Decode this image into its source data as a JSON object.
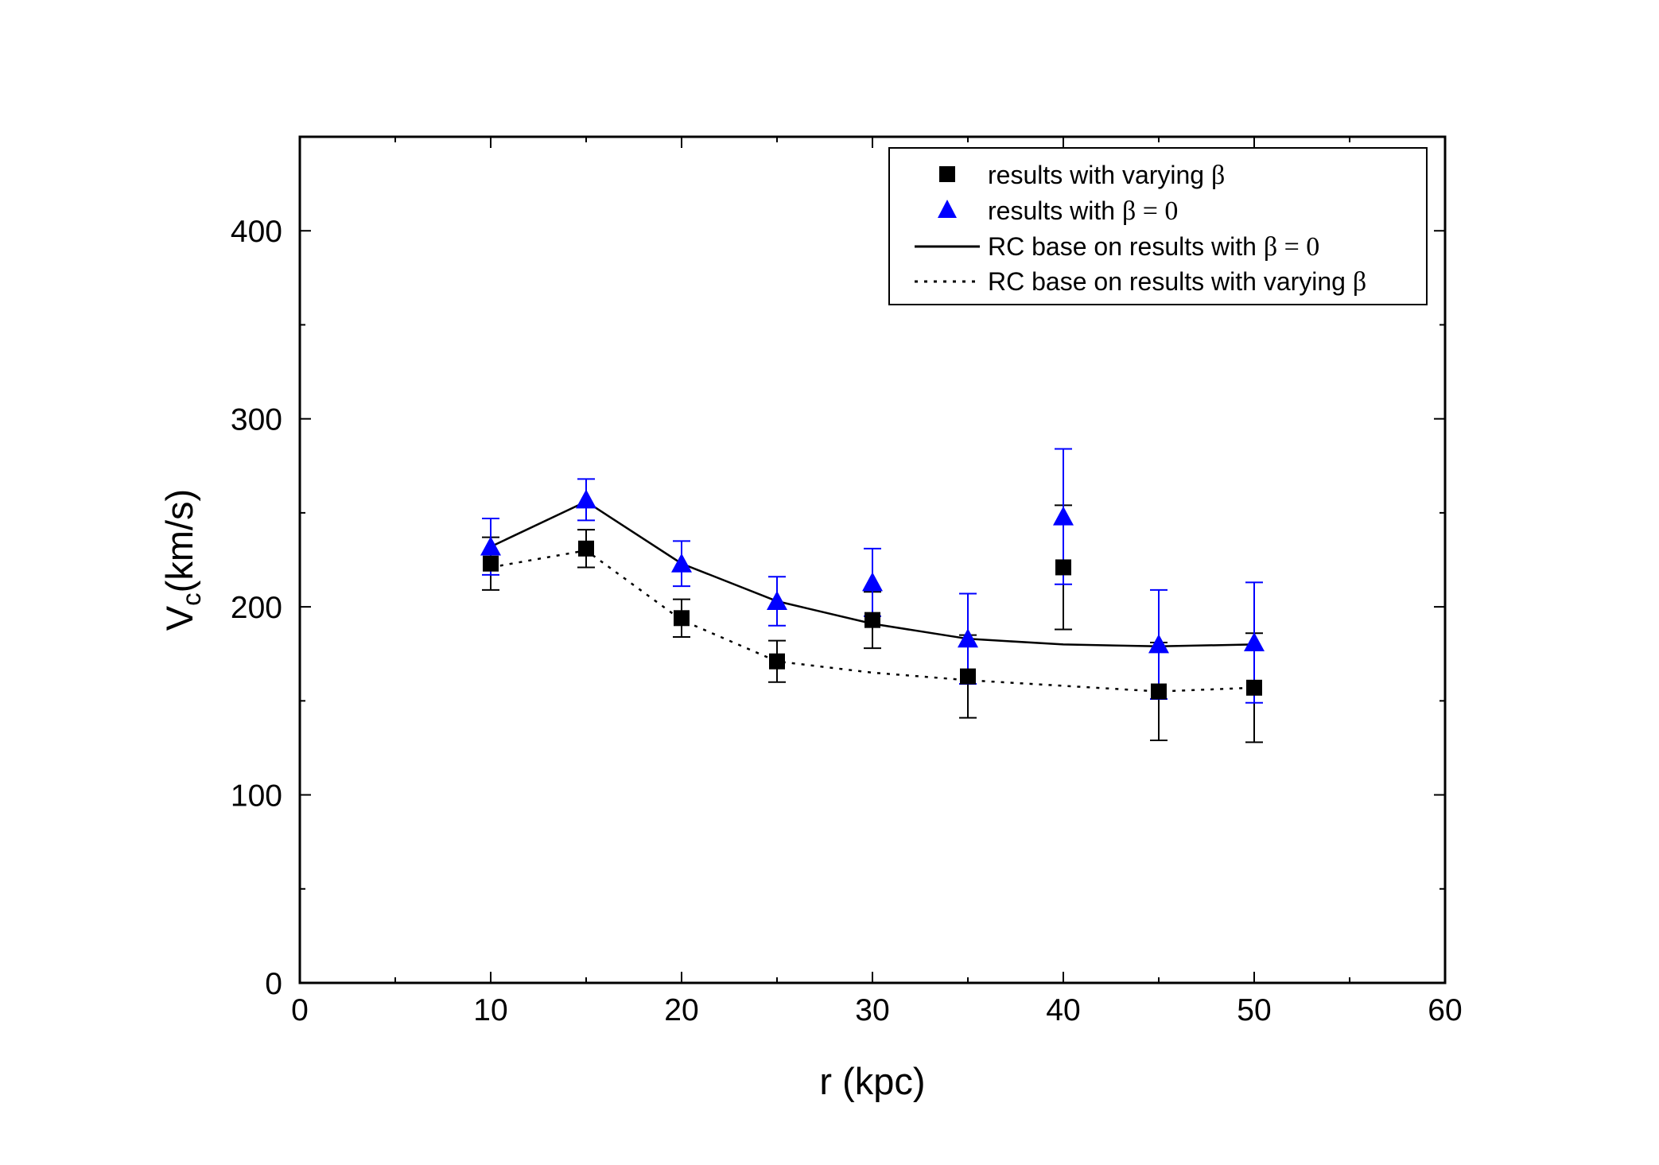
{
  "chart_data": {
    "type": "scatter",
    "title": "",
    "xlabel": "r (kpc)",
    "ylabel_main": "V",
    "ylabel_sub": "c",
    "ylabel_rest": "(km/s)",
    "xlim": [
      0,
      60
    ],
    "ylim": [
      0,
      450
    ],
    "xticks": [
      0,
      10,
      20,
      30,
      40,
      50,
      60
    ],
    "yticks": [
      0,
      100,
      200,
      300,
      400
    ],
    "x_minor_step": 5,
    "y_minor_step": 50,
    "grid": false,
    "legend_position": "top-right",
    "series": [
      {
        "name": "results with varying β",
        "legend_text": "results with varying ",
        "legend_symbol": "β",
        "kind": "points",
        "marker": "square",
        "color": "#000000",
        "x": [
          10,
          15,
          20,
          25,
          30,
          35,
          40,
          45,
          50
        ],
        "y": [
          223,
          231,
          194,
          171,
          193,
          163,
          221,
          155,
          157
        ],
        "err": [
          14,
          10,
          10,
          11,
          15,
          22,
          33,
          26,
          29
        ]
      },
      {
        "name": "results with β = 0",
        "legend_text": "results with ",
        "legend_symbol": "β = 0",
        "kind": "points",
        "marker": "triangle",
        "color": "#0000ff",
        "x": [
          10,
          15,
          20,
          25,
          30,
          35,
          40,
          45,
          50
        ],
        "y": [
          232,
          257,
          223,
          203,
          213,
          183,
          248,
          180,
          181
        ],
        "err": [
          15,
          11,
          12,
          13,
          18,
          24,
          36,
          29,
          32
        ]
      },
      {
        "name": "RC base on results with β = 0",
        "legend_text": "RC base on results with ",
        "legend_symbol": "β = 0",
        "kind": "line",
        "style": "solid",
        "color": "#000000",
        "x": [
          10,
          15,
          20,
          25,
          30,
          35,
          40,
          45,
          50
        ],
        "y": [
          232,
          256,
          223,
          203,
          191,
          183,
          180,
          179,
          180
        ]
      },
      {
        "name": "RC base on results with varying β",
        "legend_text": "RC base on results with varying ",
        "legend_symbol": "β",
        "kind": "line",
        "style": "dotted",
        "color": "#000000",
        "x": [
          10,
          15,
          20,
          25,
          30,
          35,
          40,
          45,
          50
        ],
        "y": [
          221,
          230,
          193,
          171,
          165,
          161,
          158,
          155,
          157
        ]
      }
    ]
  }
}
